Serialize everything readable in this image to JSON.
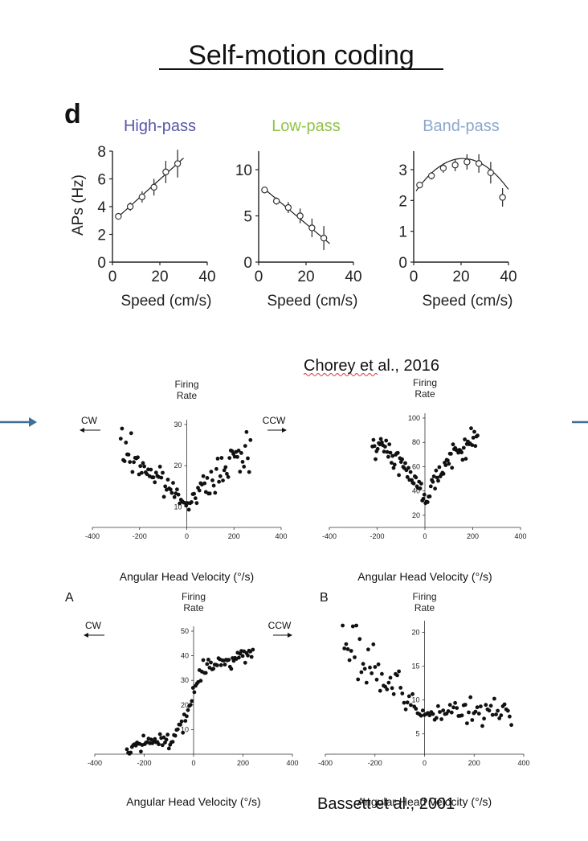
{
  "title": "Self-motion coding",
  "slide": {
    "arrow_color": "#3f6e96",
    "citation_top": "Chorey et al., 2016",
    "citation_bottom": "Bassett et al., 2001"
  },
  "top_figure": {
    "panel_label": "d",
    "ylabel": "APs (Hz)",
    "panel_colors": [
      "#5a56a8",
      "#8fc24a",
      "#8aa8cc"
    ]
  },
  "chart_data": [
    {
      "type": "scatter",
      "title": "High-pass",
      "xlabel": "Speed (cm/s)",
      "ylabel": "APs (Hz)",
      "xlim": [
        0,
        40
      ],
      "ylim": [
        0,
        8
      ],
      "xticks": [
        0,
        20,
        40
      ],
      "yticks": [
        0,
        2,
        4,
        6,
        8
      ],
      "x": [
        2.5,
        7.5,
        12.5,
        17.5,
        22.5,
        27.5
      ],
      "y": [
        3.3,
        4.0,
        4.7,
        5.4,
        6.5,
        7.1
      ],
      "err": [
        0.2,
        0.3,
        0.4,
        0.6,
        0.8,
        1.0
      ],
      "fit": {
        "kind": "linear",
        "x": [
          2,
          30
        ],
        "y": [
          3.2,
          7.5
        ]
      }
    },
    {
      "type": "scatter",
      "title": "Low-pass",
      "xlabel": "Speed (cm/s)",
      "ylabel": "",
      "xlim": [
        0,
        40
      ],
      "ylim": [
        0,
        12
      ],
      "xticks": [
        0,
        20,
        40
      ],
      "yticks": [
        0,
        5,
        10
      ],
      "x": [
        2.5,
        7.5,
        12.5,
        17.5,
        22.5,
        27.5
      ],
      "y": [
        7.8,
        6.6,
        5.9,
        5.0,
        3.7,
        2.6
      ],
      "err": [
        0.3,
        0.4,
        0.6,
        0.8,
        1.0,
        1.3
      ],
      "fit": {
        "kind": "linear",
        "x": [
          2,
          30
        ],
        "y": [
          8.0,
          2.0
        ]
      }
    },
    {
      "type": "scatter",
      "title": "Band-pass",
      "xlabel": "Speed (cm/s)",
      "ylabel": "",
      "xlim": [
        0,
        40
      ],
      "ylim": [
        0,
        3.6
      ],
      "xticks": [
        0,
        20,
        40
      ],
      "yticks": [
        0,
        1,
        2,
        3
      ],
      "x": [
        2.5,
        7.5,
        12.5,
        17.5,
        22.5,
        27.5,
        32.5,
        37.5
      ],
      "y": [
        2.5,
        2.8,
        3.05,
        3.15,
        3.25,
        3.2,
        2.9,
        2.1
      ],
      "err": [
        0.1,
        0.12,
        0.15,
        0.2,
        0.25,
        0.3,
        0.35,
        0.3
      ],
      "fit": {
        "kind": "quadratic",
        "a": -0.0027,
        "b": 0.112,
        "c": 2.2,
        "xrange": [
          1,
          40
        ]
      }
    },
    {
      "type": "scatter",
      "title": "Firing Rate",
      "xlabel": "Angular Head Velocity (°/s)",
      "xlim": [
        -400,
        400
      ],
      "ylim": [
        5,
        30
      ],
      "xticks": [
        -400,
        -200,
        0,
        200,
        400
      ],
      "yticks": [
        10,
        20,
        30
      ],
      "dir_left": "CW",
      "dir_right": "CCW",
      "shape": {
        "kind": "vshape",
        "min": 11,
        "slope_left": 0.048,
        "slope_right": 0.05,
        "noise": 2.2
      }
    },
    {
      "type": "scatter",
      "title": "Firing Rate",
      "xlabel": "Angular Head Velocity (°/s)",
      "xlim": [
        -400,
        400
      ],
      "ylim": [
        10,
        100
      ],
      "xticks": [
        -400,
        -200,
        0,
        200,
        400
      ],
      "yticks": [
        20,
        40,
        60,
        80,
        100
      ],
      "shape": {
        "kind": "vsqrt",
        "min": 25,
        "kl": 3.8,
        "kr": 4.0,
        "noise": 4.5
      }
    },
    {
      "type": "scatter",
      "panel": "A",
      "title": "Firing Rate",
      "xlabel": "Angular Head Velocity (°/s)",
      "xlim": [
        -400,
        400
      ],
      "ylim": [
        0,
        50
      ],
      "xticks": [
        -400,
        -200,
        0,
        200,
        400
      ],
      "yticks": [
        10,
        20,
        30,
        40,
        50
      ],
      "dir_left": "CW",
      "dir_right": "CCW",
      "shape": {
        "kind": "sigmoid",
        "noise": 1.8
      }
    },
    {
      "type": "scatter",
      "panel": "B",
      "title": "Firing Rate",
      "xlabel": "Angular Head Velocity (°/s)",
      "xlim": [
        -400,
        400
      ],
      "ylim": [
        2,
        21
      ],
      "xticks": [
        -400,
        -200,
        0,
        200,
        400
      ],
      "yticks": [
        5,
        10,
        15,
        20
      ],
      "shape": {
        "kind": "leftdecay",
        "noise": 1.3
      }
    }
  ]
}
